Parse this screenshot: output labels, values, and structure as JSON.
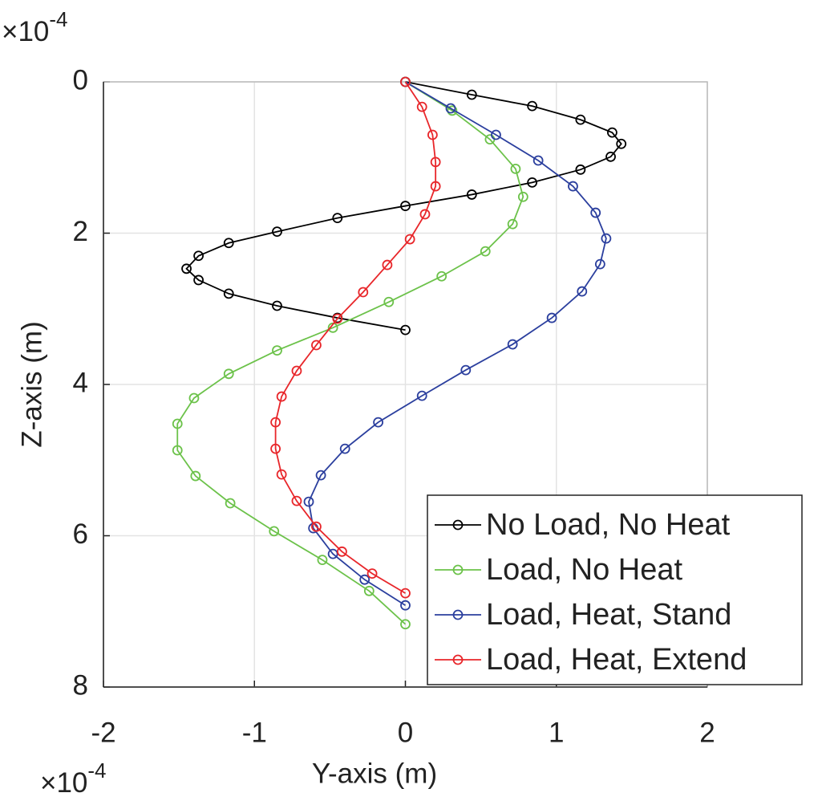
{
  "chart_data": {
    "type": "line",
    "xlabel": "Y-axis (m)",
    "ylabel": "Z-axis (m)",
    "x_multiplier": {
      "base": "×10",
      "exponent": "-4"
    },
    "y_multiplier": {
      "base": "×10",
      "exponent": "-4"
    },
    "xlim": [
      -2,
      2
    ],
    "xticks": [
      -2,
      -1,
      0,
      1,
      2
    ],
    "ylim": [
      0,
      8
    ],
    "yticks": [
      0,
      2,
      4,
      6,
      8
    ],
    "y_reversed": true,
    "grid": true,
    "legend_location": "lower right",
    "series": [
      {
        "name": "No Load, No Heat",
        "color": "#000000",
        "x": [
          0,
          0.44,
          0.84,
          1.16,
          1.37,
          1.43,
          1.36,
          1.16,
          0.84,
          0.44,
          0,
          -0.45,
          -0.85,
          -1.17,
          -1.37,
          -1.45,
          -1.37,
          -1.17,
          -0.85,
          -0.45,
          0
        ],
        "values": [
          0,
          0.17,
          0.32,
          0.5,
          0.67,
          0.82,
          0.99,
          1.16,
          1.33,
          1.49,
          1.64,
          1.8,
          1.98,
          2.13,
          2.3,
          2.47,
          2.62,
          2.8,
          2.96,
          3.12,
          3.28
        ]
      },
      {
        "name": "Load, No Heat",
        "color": "#6cc24a",
        "x": [
          0,
          0.31,
          0.56,
          0.73,
          0.78,
          0.71,
          0.53,
          0.24,
          -0.11,
          -0.48,
          -0.85,
          -1.17,
          -1.4,
          -1.51,
          -1.51,
          -1.39,
          -1.16,
          -0.87,
          -0.55,
          -0.24,
          0
        ],
        "values": [
          0,
          0.38,
          0.76,
          1.15,
          1.52,
          1.88,
          2.24,
          2.57,
          2.91,
          3.25,
          3.55,
          3.86,
          4.18,
          4.52,
          4.87,
          5.21,
          5.57,
          5.94,
          6.32,
          6.73,
          7.17
        ]
      },
      {
        "name": "Load, Heat, Stand",
        "color": "#2b3f9e",
        "x": [
          0,
          0.3,
          0.6,
          0.88,
          1.11,
          1.26,
          1.33,
          1.29,
          1.17,
          0.97,
          0.71,
          0.4,
          0.11,
          -0.18,
          -0.4,
          -0.56,
          -0.64,
          -0.61,
          -0.48,
          -0.27,
          0
        ],
        "values": [
          0,
          0.35,
          0.7,
          1.04,
          1.38,
          1.73,
          2.07,
          2.41,
          2.77,
          3.12,
          3.47,
          3.81,
          4.15,
          4.5,
          4.85,
          5.2,
          5.55,
          5.9,
          6.24,
          6.58,
          6.92
        ]
      },
      {
        "name": "Load, Heat, Extend",
        "color": "#e8262a",
        "x": [
          0,
          0.11,
          0.18,
          0.2,
          0.2,
          0.13,
          0.03,
          -0.12,
          -0.28,
          -0.45,
          -0.59,
          -0.72,
          -0.82,
          -0.86,
          -0.86,
          -0.82,
          -0.72,
          -0.59,
          -0.42,
          -0.22,
          0
        ],
        "values": [
          0,
          0.33,
          0.7,
          1.06,
          1.38,
          1.75,
          2.08,
          2.42,
          2.78,
          3.13,
          3.48,
          3.82,
          4.16,
          4.5,
          4.85,
          5.19,
          5.54,
          5.88,
          6.21,
          6.5,
          6.76
        ]
      }
    ]
  }
}
